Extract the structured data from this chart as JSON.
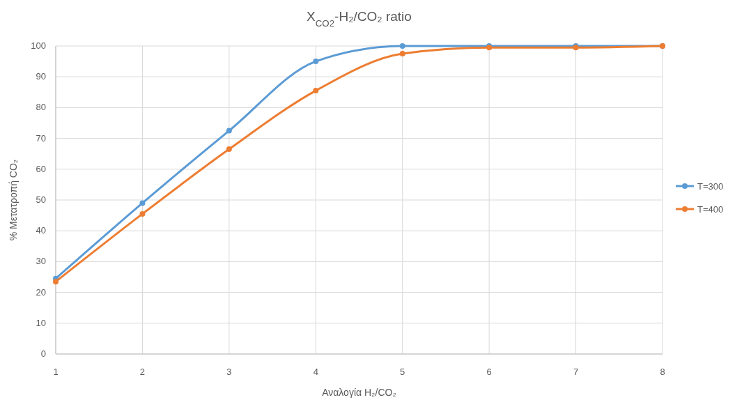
{
  "chart_data": {
    "type": "line",
    "title": "X$_{CO2}$-H₂/CO₂ ratio",
    "xlabel": "Αναλογία H₂/CO₂",
    "ylabel": "% Μετατροπή CO₂",
    "x": [
      1,
      2,
      3,
      4,
      5,
      6,
      7,
      8
    ],
    "series": [
      {
        "name": "T=300",
        "color": "#5b9bd5",
        "values": [
          24.5,
          49,
          72.5,
          95,
          100,
          100,
          100,
          100
        ]
      },
      {
        "name": "T=400",
        "color": "#ed7d31",
        "values": [
          23.5,
          45.5,
          66.5,
          85.5,
          97.5,
          99.5,
          99.5,
          100
        ]
      }
    ],
    "xlim": [
      1,
      8
    ],
    "xticks": [
      1,
      2,
      3,
      4,
      5,
      6,
      7,
      8
    ],
    "ylim": [
      0,
      100
    ],
    "yticks": [
      0,
      10,
      20,
      30,
      40,
      50,
      60,
      70,
      80,
      90,
      100
    ],
    "grid": true,
    "legend": "right",
    "marker": "circle",
    "line_style": "solid"
  }
}
